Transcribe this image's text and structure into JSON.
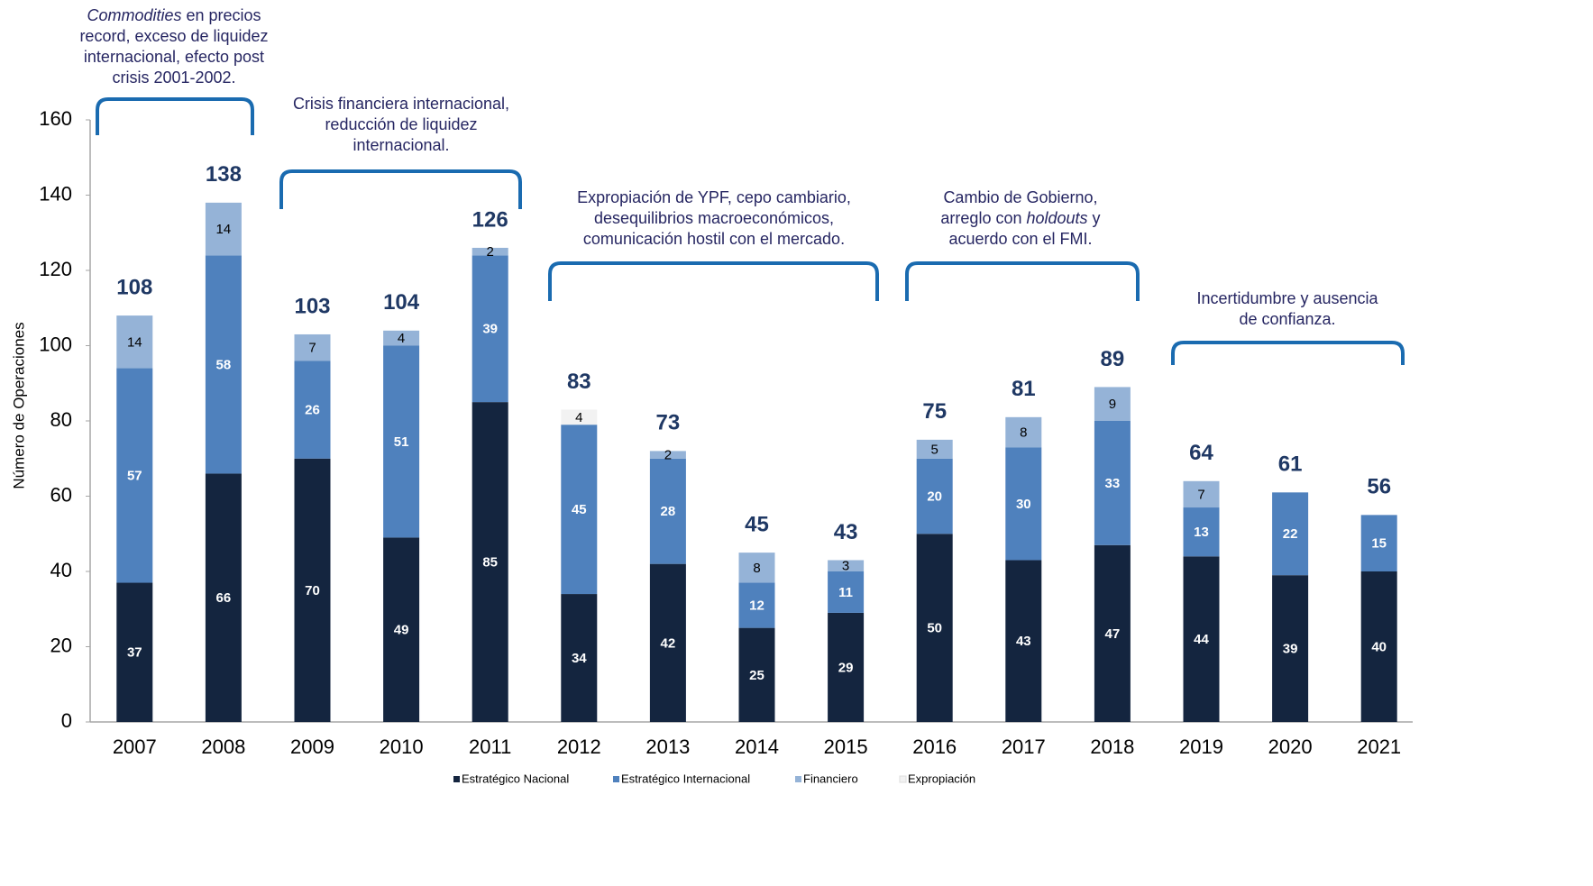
{
  "chart_data": {
    "type": "stacked_bar",
    "y_label": "Número de Operaciones",
    "categories": [
      "2007",
      "2008",
      "2009",
      "2010",
      "2011",
      "2012",
      "2013",
      "2014",
      "2015",
      "2016",
      "2017",
      "2018",
      "2019",
      "2020",
      "2021"
    ],
    "series": [
      {
        "name": "Estratégico Nacional",
        "color": "#14253f",
        "values": [
          37,
          66,
          70,
          49,
          85,
          34,
          42,
          25,
          29,
          50,
          43,
          47,
          44,
          39,
          40
        ]
      },
      {
        "name": "Estratégico Internacional",
        "color": "#4f81bd",
        "values": [
          57,
          58,
          26,
          51,
          39,
          45,
          28,
          12,
          11,
          20,
          30,
          33,
          13,
          22,
          15
        ]
      },
      {
        "name": "Financiero",
        "color": "#95b3d7",
        "values": [
          14,
          14,
          7,
          4,
          2,
          null,
          2,
          8,
          3,
          5,
          8,
          9,
          7,
          null,
          null
        ]
      },
      {
        "name": "Expropiación",
        "color": "#f2f2f2",
        "values": [
          null,
          null,
          null,
          null,
          null,
          4,
          null,
          null,
          null,
          null,
          null,
          null,
          null,
          null,
          null
        ]
      }
    ],
    "totals": [
      108,
      138,
      103,
      104,
      126,
      83,
      73,
      45,
      43,
      75,
      81,
      89,
      64,
      61,
      56
    ],
    "ylim": [
      0,
      160
    ],
    "yticks": [
      0,
      20,
      40,
      60,
      80,
      100,
      120,
      140,
      160
    ],
    "annotations": [
      {
        "lines": [
          [
            {
              "text": "Commodities",
              "italic": true
            },
            {
              "text": " en precios"
            }
          ],
          [
            {
              "text": "record, exceso de liquidez"
            }
          ],
          [
            {
              "text": "internacional, efecto post"
            }
          ],
          [
            {
              "text": "crisis 2001-2002."
            }
          ]
        ]
      },
      {
        "lines": [
          [
            {
              "text": "Crisis financiera internacional,"
            }
          ],
          [
            {
              "text": "reducción de liquidez"
            }
          ],
          [
            {
              "text": "internacional."
            }
          ]
        ]
      },
      {
        "lines": [
          [
            {
              "text": "Expropiación de YPF, cepo cambiario,"
            }
          ],
          [
            {
              "text": "desequilibrios macroeconómicos,"
            }
          ],
          [
            {
              "text": "comunicación hostil con el mercado."
            }
          ]
        ]
      },
      {
        "lines": [
          [
            {
              "text": "Cambio de Gobierno,"
            }
          ],
          [
            {
              "text": "arreglo con "
            },
            {
              "text": "holdouts",
              "italic": true
            },
            {
              "text": " y"
            }
          ],
          [
            {
              "text": "acuerdo con el FMI."
            }
          ]
        ]
      },
      {
        "lines": [
          [
            {
              "text": "Incertidumbre y ausencia"
            }
          ],
          [
            {
              "text": "de confianza."
            }
          ]
        ]
      }
    ]
  }
}
